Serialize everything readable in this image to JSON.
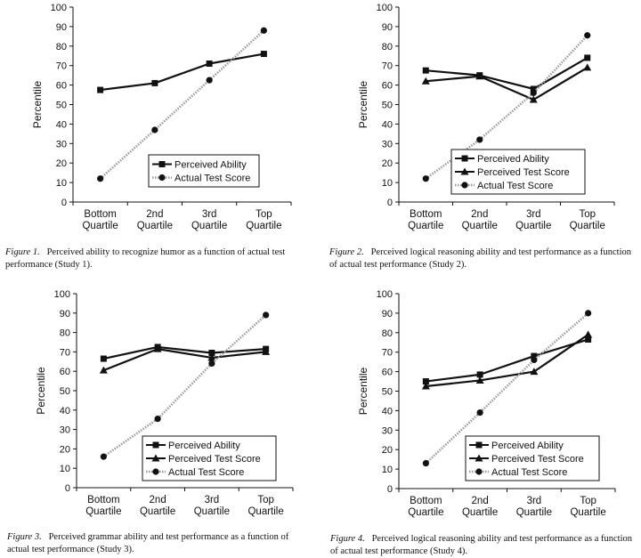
{
  "chart_data": [
    {
      "type": "line",
      "categories": [
        "Bottom Quartile",
        "2nd Quartile",
        "3rd Quartile",
        "Top Quartile"
      ],
      "category_lines": [
        [
          "Bottom",
          "Quartile"
        ],
        [
          "2nd",
          "Quartile"
        ],
        [
          "3rd",
          "Quartile"
        ],
        [
          "Top",
          "Quartile"
        ]
      ],
      "ylabel": "Percentile",
      "ylim": [
        0,
        100
      ],
      "yticks": [
        0,
        10,
        20,
        30,
        40,
        50,
        60,
        70,
        80,
        90,
        100
      ],
      "legend_position": "bottom-right",
      "series": [
        {
          "name": "Perceived Ability",
          "marker": "square",
          "style": "solid",
          "color": "#111111",
          "values": [
            57.5,
            61,
            71,
            76
          ]
        },
        {
          "name": "Actual Test Score",
          "marker": "circle",
          "style": "dotted",
          "color": "#9a9a9a",
          "values": [
            12,
            37,
            62.5,
            88
          ]
        }
      ],
      "caption_label": "Figure 1.",
      "caption_text": "Perceived ability to recognize humor as a function of actual test performance (Study 1)."
    },
    {
      "type": "line",
      "categories": [
        "Bottom Quartile",
        "2nd Quartile",
        "3rd Quartile",
        "Top Quartile"
      ],
      "category_lines": [
        [
          "Bottom",
          "Quartile"
        ],
        [
          "2nd",
          "Quartile"
        ],
        [
          "3rd",
          "Quartile"
        ],
        [
          "Top",
          "Quartile"
        ]
      ],
      "ylabel": "Percentile",
      "ylim": [
        0,
        100
      ],
      "yticks": [
        0,
        10,
        20,
        30,
        40,
        50,
        60,
        70,
        80,
        90,
        100
      ],
      "legend_position": "bottom-right",
      "series": [
        {
          "name": "Perceived Ability",
          "marker": "square",
          "style": "solid",
          "color": "#111111",
          "values": [
            67.5,
            65,
            58,
            74
          ]
        },
        {
          "name": "Perceived Test Score",
          "marker": "triangle",
          "style": "solid",
          "color": "#111111",
          "values": [
            62,
            64.5,
            52.5,
            69
          ]
        },
        {
          "name": "Actual Test Score",
          "marker": "circle",
          "style": "dotted",
          "color": "#9a9a9a",
          "values": [
            12,
            32,
            56,
            85.5
          ]
        }
      ],
      "caption_label": "Figure 2.",
      "caption_text": "Perceived logical reasoning ability and test performance as a function of actual test performance (Study 2)."
    },
    {
      "type": "line",
      "categories": [
        "Bottom Quartile",
        "2nd Quartile",
        "3rd Quartile",
        "Top Quartile"
      ],
      "category_lines": [
        [
          "Bottom",
          "Quartile"
        ],
        [
          "2nd",
          "Quartile"
        ],
        [
          "3rd",
          "Quartile"
        ],
        [
          "Top",
          "Quartile"
        ]
      ],
      "ylabel": "Percentile",
      "ylim": [
        0,
        100
      ],
      "yticks": [
        0,
        10,
        20,
        30,
        40,
        50,
        60,
        70,
        80,
        90,
        100
      ],
      "legend_position": "bottom-right",
      "series": [
        {
          "name": "Perceived Ability",
          "marker": "square",
          "style": "solid",
          "color": "#111111",
          "values": [
            66.5,
            72.5,
            69.5,
            71.5
          ]
        },
        {
          "name": "Perceived Test Score",
          "marker": "triangle",
          "style": "solid",
          "color": "#111111",
          "values": [
            60.5,
            71.5,
            67,
            70
          ]
        },
        {
          "name": "Actual Test Score",
          "marker": "circle",
          "style": "dotted",
          "color": "#9a9a9a",
          "values": [
            16,
            35.5,
            64,
            89
          ]
        }
      ],
      "caption_label": "Figure 3.",
      "caption_text": "Perceived grammar ability and test performance as a function of actual test performance (Study 3)."
    },
    {
      "type": "line",
      "categories": [
        "Bottom Quartile",
        "2nd Quartile",
        "3rd Quartile",
        "Top Quartile"
      ],
      "category_lines": [
        [
          "Bottom",
          "Quartile"
        ],
        [
          "2nd",
          "Quartile"
        ],
        [
          "3rd",
          "Quartile"
        ],
        [
          "Top",
          "Quartile"
        ]
      ],
      "ylabel": "Percentile",
      "ylim": [
        0,
        100
      ],
      "yticks": [
        0,
        10,
        20,
        30,
        40,
        50,
        60,
        70,
        80,
        90,
        100
      ],
      "legend_position": "bottom-right",
      "series": [
        {
          "name": "Perceived Ability",
          "marker": "square",
          "style": "solid",
          "color": "#111111",
          "values": [
            55,
            58.5,
            68,
            76.5
          ]
        },
        {
          "name": "Perceived Test Score",
          "marker": "triangle",
          "style": "solid",
          "color": "#111111",
          "values": [
            52.5,
            55.5,
            60,
            79
          ]
        },
        {
          "name": "Actual Test Score",
          "marker": "circle",
          "style": "dotted",
          "color": "#9a9a9a",
          "values": [
            13,
            39,
            66,
            90
          ]
        }
      ],
      "caption_label": "Figure 4.",
      "caption_text": "Perceived logical reasoning ability and test performance as a function of actual test performance (Study 4)."
    }
  ]
}
